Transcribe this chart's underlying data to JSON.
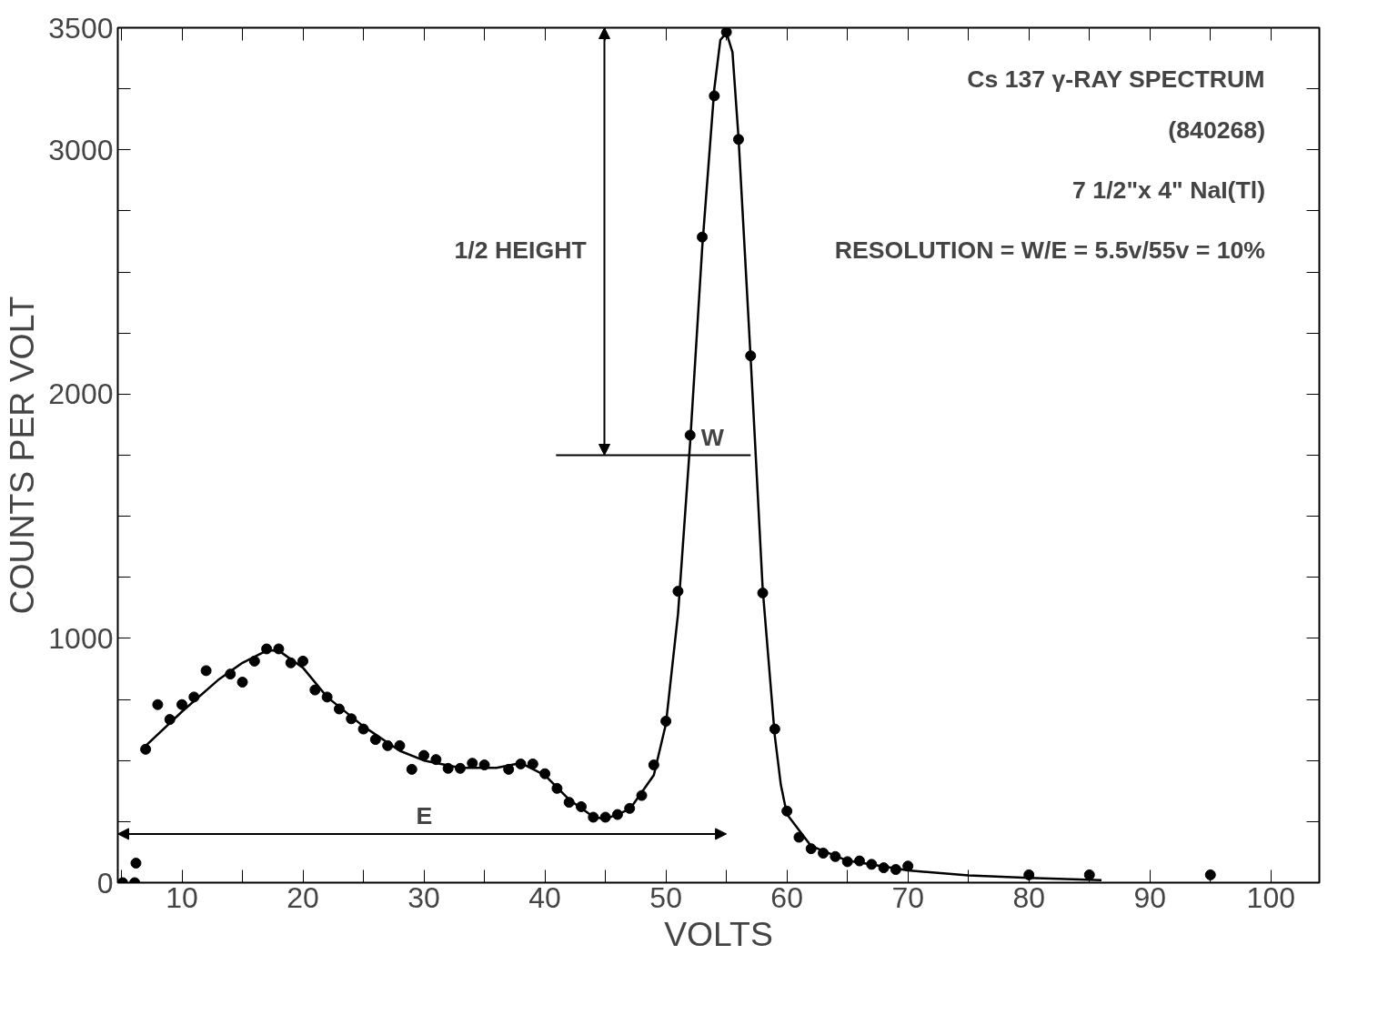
{
  "chart_data": {
    "type": "scatter",
    "xlabel": "VOLTS",
    "ylabel": "COUNTS PER VOLT",
    "xlim": [
      4.7,
      104
    ],
    "ylim": [
      0,
      3500
    ],
    "xticks": [
      {
        "value": 5,
        "label": null
      },
      10,
      {
        "value": 15,
        "label": null
      },
      20,
      {
        "value": 25,
        "label": null
      },
      30,
      {
        "value": 35,
        "label": null
      },
      40,
      {
        "value": 45,
        "label": null
      },
      50,
      {
        "value": 55,
        "label": null
      },
      60,
      {
        "value": 65,
        "label": null
      },
      70,
      {
        "value": 75,
        "label": null
      },
      80,
      {
        "value": 85,
        "label": null
      },
      90,
      {
        "value": 95,
        "label": null
      },
      100
    ],
    "yticks": [
      0,
      {
        "value": 250,
        "label": null
      },
      {
        "value": 500,
        "label": null
      },
      {
        "value": 750,
        "label": null
      },
      1000,
      {
        "value": 1250,
        "label": null
      },
      {
        "value": 1500,
        "label": null
      },
      {
        "value": 1750,
        "label": null
      },
      2000,
      {
        "value": 2250,
        "label": null
      },
      {
        "value": 2500,
        "label": null
      },
      {
        "value": 2750,
        "label": null
      },
      3000,
      {
        "value": 3250,
        "label": null
      },
      3500
    ],
    "grid": false,
    "annotations": [
      "Cs 137 γ-RAY SPECTRUM",
      "(840268)",
      "7 1/2\"x 4\" NaI(Tl)",
      "RESOLUTION = W/E = 5.5v/55v = 10%",
      "1/2 HEIGHT",
      "W",
      "E"
    ],
    "series": [
      {
        "marker": "circle",
        "color": "#000000",
        "x": [
          5.1,
          6.1,
          6.2,
          7,
          8,
          9,
          10,
          11,
          12,
          14,
          15,
          16,
          17,
          18,
          19,
          20,
          21,
          22,
          23,
          24,
          25,
          26,
          27,
          28,
          29,
          30,
          31,
          32,
          33,
          34,
          35,
          37,
          38,
          39,
          40,
          41,
          42,
          43,
          44,
          45,
          46,
          47,
          48,
          49,
          50,
          51,
          52,
          53,
          54,
          55,
          56,
          57,
          58,
          59,
          60,
          61,
          62,
          63,
          64,
          65,
          66,
          67,
          68,
          69,
          70,
          80,
          85,
          95
        ],
        "values": [
          0,
          0,
          80,
          546,
          729,
          668,
          729,
          760,
          868,
          854,
          821,
          907,
          957,
          957,
          900,
          907,
          789,
          760,
          711,
          671,
          629,
          586,
          561,
          561,
          464,
          521,
          504,
          468,
          468,
          489,
          482,
          464,
          486,
          486,
          446,
          386,
          329,
          311,
          268,
          268,
          279,
          304,
          357,
          482,
          661,
          1193,
          1832,
          2643,
          3221,
          3482,
          3043,
          2157,
          1186,
          629,
          293,
          186,
          139,
          121,
          107,
          86,
          89,
          75,
          61,
          54,
          68,
          32,
          32,
          32
        ]
      },
      {
        "type": "line",
        "marker": "none",
        "line_style": "solid",
        "color": "#000000",
        "x": [
          7,
          10,
          13,
          15,
          17,
          18,
          20,
          22,
          25,
          28,
          30,
          33,
          36,
          38,
          40,
          42,
          44,
          45,
          47,
          49,
          50,
          51,
          52,
          53,
          54,
          54.5,
          55,
          55.5,
          56,
          57,
          58,
          59,
          59.5,
          60,
          62,
          65,
          70,
          75,
          80,
          86
        ],
        "values": [
          560,
          700,
          830,
          900,
          950,
          950,
          880,
          760,
          640,
          540,
          500,
          470,
          470,
          490,
          440,
          340,
          270,
          260,
          300,
          440,
          650,
          1100,
          1800,
          2600,
          3250,
          3450,
          3480,
          3400,
          3050,
          2150,
          1200,
          600,
          400,
          280,
          150,
          90,
          50,
          30,
          20,
          10
        ]
      }
    ]
  }
}
